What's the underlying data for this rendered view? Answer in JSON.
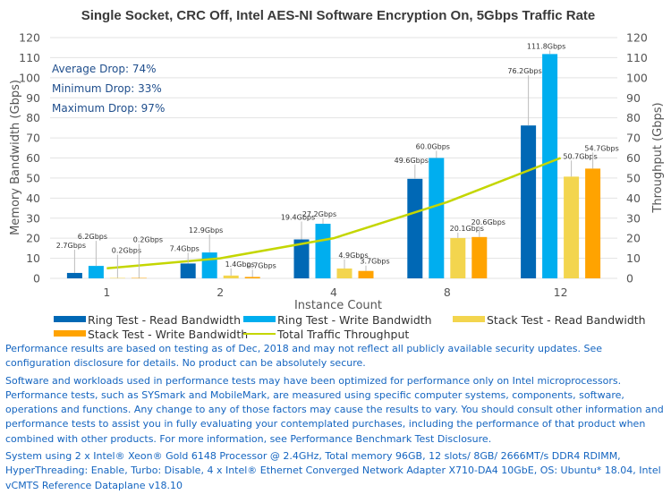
{
  "chart_data": {
    "type": "bar",
    "title": "Single Socket, CRC Off, Intel AES-NI Software Encryption On, 5Gbps Traffic Rate",
    "xlabel": "Instance Count",
    "ylabel": "Memory Bandwidth (Gbps)",
    "y2label": "Throughput (Gbps)",
    "ylim": [
      0,
      120
    ],
    "y2lim": [
      0,
      120
    ],
    "yticks": [
      0,
      10,
      20,
      30,
      40,
      50,
      60,
      70,
      80,
      90,
      100,
      110,
      120
    ],
    "grid": true,
    "legend_position": "bottom",
    "categories": [
      "1",
      "2",
      "4",
      "8",
      "12"
    ],
    "series": [
      {
        "name": "Ring Test - Read Bandwidth",
        "type": "bar",
        "axis": "left",
        "color": "#0068b5",
        "values": [
          2.7,
          7.4,
          19.4,
          49.6,
          76.2
        ],
        "labels": [
          "2.7Gbps",
          "7.4Gbps",
          "19.4Gbps",
          "49.6Gbps",
          "76.2Gbps"
        ]
      },
      {
        "name": "Ring Test - Write Bandwidth",
        "type": "bar",
        "axis": "left",
        "color": "#00aeef",
        "values": [
          6.2,
          12.9,
          27.2,
          60.0,
          111.8
        ],
        "labels": [
          "6.2Gbps",
          "12.9Gbps",
          "27.2Gbps",
          "60.0Gbps",
          "111.8Gbps"
        ]
      },
      {
        "name": "Stack Test - Read Bandwidth",
        "type": "bar",
        "axis": "left",
        "color": "#f3d54e",
        "values": [
          0.2,
          1.4,
          4.9,
          20.1,
          50.7
        ],
        "labels": [
          "0.2Gbps",
          "1.4Gbps",
          "4.9Gbps",
          "20.1Gbps",
          "50.7Gbps"
        ]
      },
      {
        "name": "Stack Test - Write Bandwidth",
        "type": "bar",
        "axis": "left",
        "color": "#ffa300",
        "values": [
          0.2,
          0.7,
          3.7,
          20.6,
          54.7
        ],
        "labels": [
          "0.2Gbps",
          "0.7Gbps",
          "3.7Gbps",
          "20.6Gbps",
          "54.7Gbps"
        ]
      },
      {
        "name": "Total Traffic Throughput",
        "type": "line",
        "axis": "right",
        "color": "#c4d600",
        "values": [
          5,
          10,
          20,
          38,
          60
        ]
      }
    ],
    "annotations": [
      "Average Drop: 74%",
      "Minimum Drop: 33%",
      "Maximum Drop: 97%"
    ]
  },
  "notes": [
    "Performance results are based on testing as of Dec, 2018 and may not reflect all publicly available security updates. See configuration disclosure for details. No product can be absolutely secure.",
    "Software and workloads used in performance tests may have been optimized for performance only on Intel microprocessors. Performance tests, such as SYSmark and MobileMark, are measured using specific computer systems, components, software, operations and functions. Any change to any of those factors may cause the results to vary. You should consult other information and performance tests to assist you in fully evaluating your contemplated purchases, including the performance of that product when combined with other products. For more information, see Performance Benchmark Test Disclosure.",
    "System using 2 x Intel® Xeon® Gold 6148 Processor @ 2.4GHz, Total memory 96GB, 12 slots/ 8GB/ 2666MT/s DDR4 RDIMM, HyperThreading: Enable, Turbo: Disable, 4 x Intel® Ethernet Converged Network Adapter X710-DA4 10GbE, OS: Ubuntu* 18.04, Intel vCMTS Reference Dataplane v18.10"
  ]
}
